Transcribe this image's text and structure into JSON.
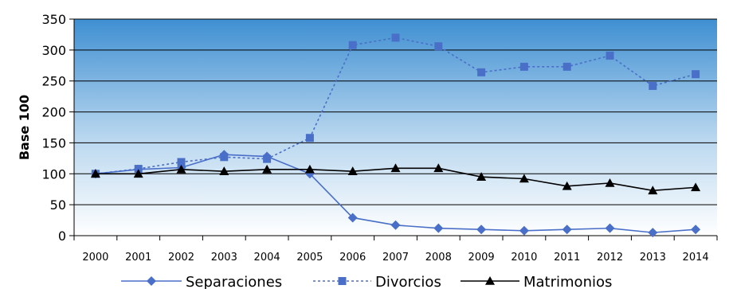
{
  "chart_data": {
    "type": "line",
    "ylabel": "Base 100",
    "xlabel": "",
    "ylim": [
      0,
      350
    ],
    "ystep": 50,
    "grid": true,
    "legend_placement": "bottom",
    "categories": [
      "2000",
      "2001",
      "2002",
      "2003",
      "2004",
      "2005",
      "2006",
      "2007",
      "2008",
      "2009",
      "2010",
      "2011",
      "2012",
      "2013",
      "2014"
    ],
    "series": [
      {
        "name": "Separaciones",
        "color": "#4a6fc8",
        "marker": "diamond",
        "dash": "solid",
        "values": [
          100,
          107,
          110,
          131,
          128,
          100,
          29,
          17,
          12,
          10,
          8,
          10,
          12,
          5,
          10
        ]
      },
      {
        "name": "Divorcios",
        "color": "#4a6fc8",
        "marker": "square",
        "dash": "dotted",
        "values": [
          100,
          108,
          119,
          127,
          124,
          158,
          308,
          320,
          306,
          264,
          273,
          273,
          291,
          242,
          261
        ]
      },
      {
        "name": "Matrimonios",
        "color": "#000000",
        "marker": "triangle",
        "dash": "solid",
        "values": [
          100,
          100,
          107,
          104,
          107,
          107,
          104,
          109,
          109,
          95,
          92,
          80,
          85,
          73,
          78
        ]
      }
    ]
  }
}
